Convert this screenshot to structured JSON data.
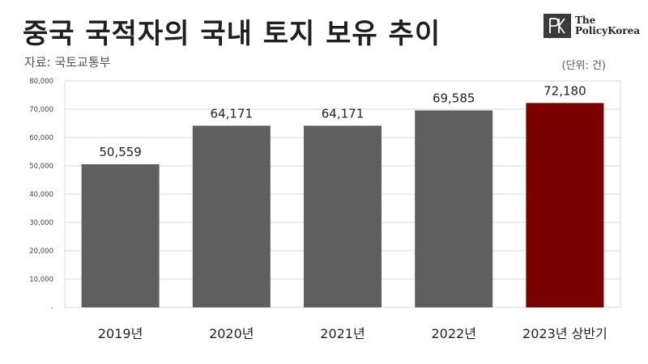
{
  "header": {
    "title": "중국 국적자의 국내 토지 보유 추이",
    "source": "자료: 국토교통부",
    "unit": "(단위: 건)"
  },
  "logo": {
    "mark": "PK",
    "line1": "The",
    "line2": "PolicyKorea"
  },
  "colors": {
    "bar": "#5f5f5f",
    "highlight": "#7a0000",
    "grid": "#d9d9d9"
  },
  "chart_data": {
    "type": "bar",
    "title": "중국 국적자의 국내 토지 보유 추이",
    "categories": [
      "2019년",
      "2020년",
      "2021년",
      "2022년",
      "2023년 상반기"
    ],
    "values": [
      50559,
      64171,
      64171,
      69585,
      72180
    ],
    "data_labels": [
      "50,559",
      "64,171",
      "64,171",
      "69,585",
      "72,180"
    ],
    "highlight_index": 4,
    "ylim": [
      0,
      80000
    ],
    "yticks": [
      0,
      10000,
      20000,
      30000,
      40000,
      50000,
      60000,
      70000,
      80000
    ],
    "ytick_labels": [
      "-",
      "10,000",
      "20,000",
      "30,000",
      "40,000",
      "50,000",
      "60,000",
      "70,000",
      "80,000"
    ],
    "grid": true,
    "xlabel": "",
    "ylabel": ""
  }
}
